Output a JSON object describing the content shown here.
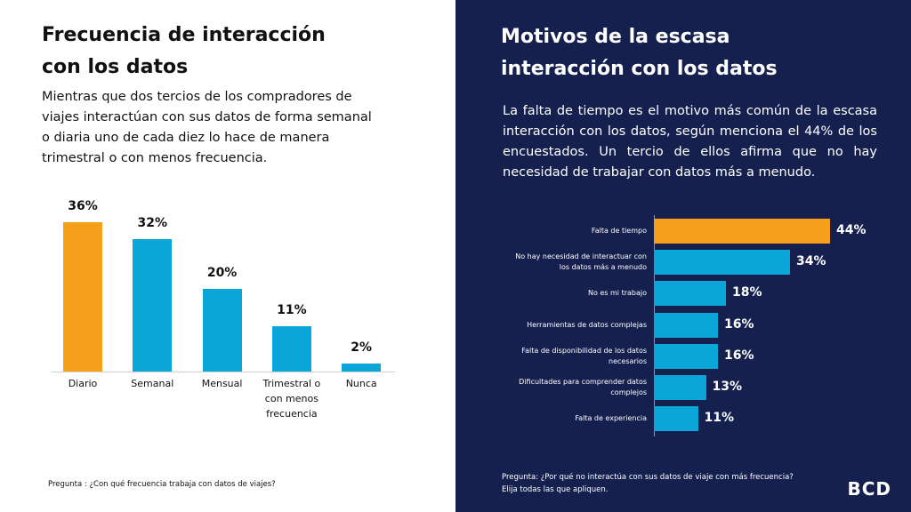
{
  "chart_data": [
    {
      "type": "bar",
      "title": "Frecuencia de interacción con los datos",
      "subtitle": "Mientras que dos tercios de los compradores de viajes interactúan con sus datos de forma semanal o diaria uno de cada diez lo hace de manera trimestral o con menos frecuencia.",
      "categories": [
        "Diario",
        "Semanal",
        "Mensual",
        "Trimestral o con menos frecuencia",
        "Nunca"
      ],
      "values": [
        36,
        32,
        20,
        11,
        2
      ],
      "value_labels": [
        "36%",
        "32%",
        "20%",
        "11%",
        "2%"
      ],
      "colors": [
        "#f7a01c",
        "#0aa6d8",
        "#0aa6d8",
        "#0aa6d8",
        "#0aa6d8"
      ],
      "note": "Pregunta : ¿Con qué frecuencia trabaja con datos de viajes?"
    },
    {
      "type": "hbar",
      "title": "Motivos de la escasa interacción con los datos",
      "subtitle": "La falta de tiempo es el motivo más común de la escasa interacción con los datos, según menciona el 44% de los encuestados. Un tercio de ellos afirma que no hay necesidad de trabajar con datos más a menudo.",
      "categories": [
        "Falta de tiempo",
        "No hay necesidad de interactuar con los datos más a menudo",
        "No es mi trabajo",
        "Herramientas de datos complejas",
        "Falta de disponibilidad de los datos necesarios",
        "Dificultades para comprender datos complejos",
        "Falta de experiencia"
      ],
      "values": [
        44,
        34,
        18,
        16,
        16,
        13,
        11
      ],
      "value_labels": [
        "44%",
        "34%",
        "18%",
        "16%",
        "16%",
        "13%",
        "11%"
      ],
      "colors": [
        "#f7a01c",
        "#0aa6d8",
        "#0aa6d8",
        "#0aa6d8",
        "#0aa6d8",
        "#0aa6d8",
        "#0aa6d8"
      ],
      "note": "Pregunta: ¿Por qué no interactúa con sus datos de viaje con más frecuencia? Elija todas las que apliquen."
    }
  ],
  "logo": "BCD"
}
